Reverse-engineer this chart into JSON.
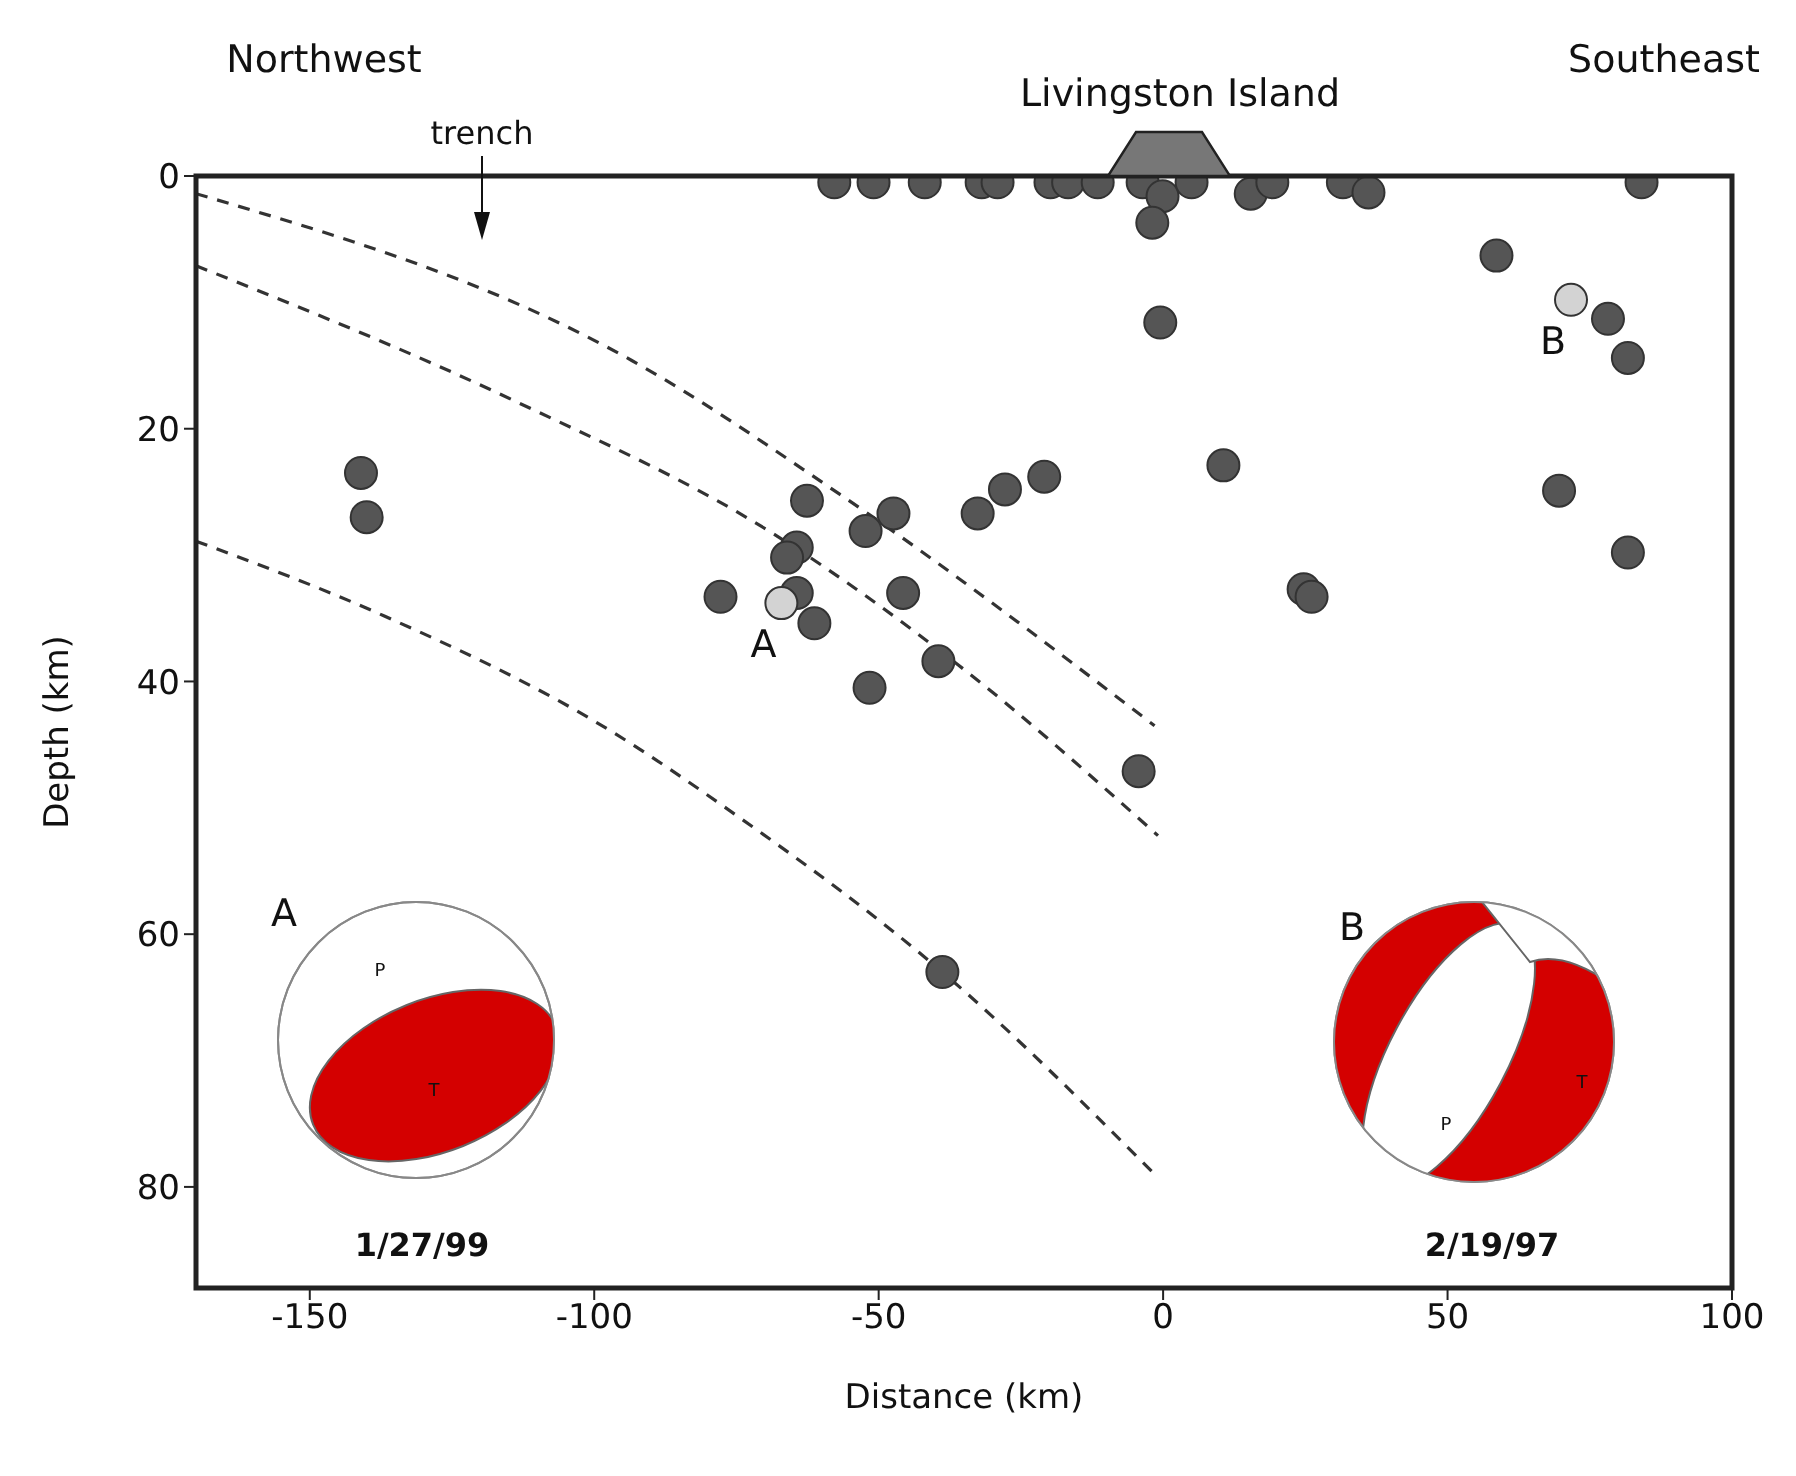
{
  "chart_data": {
    "type": "scatter",
    "xlabel": "Distance (km)",
    "ylabel": "Depth (km)",
    "xlim": [
      -170,
      100
    ],
    "xticks": [
      -150,
      -100,
      -50,
      0,
      50,
      100
    ],
    "ylim": [
      88,
      0
    ],
    "yticks": [
      0,
      20,
      40,
      60,
      80
    ],
    "marker": "circle",
    "series": [
      {
        "color": "#555555",
        "x": [
          -57.8,
          -50.9,
          -41.9,
          -31.9,
          -29.1,
          -19.8,
          -16.7,
          -11.5,
          -3.6,
          -0.1,
          -1.9,
          5.0,
          15.4,
          19.2,
          31.6,
          36.1,
          84.1,
          58.6,
          78.2,
          81.7,
          -0.5,
          10.6,
          69.6,
          81.7,
          24.7,
          26.1,
          -20.9,
          -27.8,
          -32.6,
          -141.0,
          -140.0,
          -62.6,
          -64.4,
          -66.1,
          -64.4,
          -77.8,
          -61.3,
          -52.3,
          -47.4,
          -45.7,
          -39.5,
          -51.6,
          -4.3,
          -38.8
        ],
        "values": [
          0.5,
          0.5,
          0.5,
          0.5,
          0.5,
          0.5,
          0.5,
          0.5,
          0.5,
          1.6,
          3.7,
          0.5,
          1.4,
          0.5,
          0.5,
          1.3,
          0.5,
          6.3,
          11.3,
          14.4,
          11.6,
          22.9,
          24.9,
          29.8,
          32.7,
          33.3,
          23.8,
          24.8,
          26.7,
          23.5,
          27.0,
          25.7,
          29.4,
          30.2,
          33.0,
          33.3,
          35.4,
          28.1,
          26.7,
          33.0,
          38.4,
          40.5,
          47.1,
          63.0
        ]
      },
      {
        "color": "#d3d3d3",
        "x": [
          -67.1,
          71.7
        ],
        "values": [
          33.8,
          9.8
        ]
      },
      {
        "type": "line",
        "color": "#333333",
        "line_style": "dashed",
        "marker": "none",
        "x": [
          -170,
          -93.4,
          -56.8,
          -1.5
        ],
        "values": [
          1.4,
          14.6,
          25.2,
          43.5
        ]
      },
      {
        "type": "line",
        "color": "#333333",
        "line_style": "dashed",
        "marker": "none",
        "x": [
          -170,
          -114,
          -68.2,
          -36,
          -0.9
        ],
        "values": [
          7.1,
          17.8,
          28.4,
          38.7,
          52.2
        ]
      },
      {
        "type": "line",
        "color": "#333333",
        "line_style": "dashed",
        "marker": "none",
        "x": [
          -170,
          -137,
          -96.8,
          -75,
          -38.8,
          -1.5
        ],
        "values": [
          28.9,
          34.8,
          44.0,
          50.6,
          63.0,
          79.0
        ]
      }
    ],
    "annotations": [
      "Northwest",
      "Southeast",
      "trench",
      "Livingston Island",
      {
        "text": "A",
        "x": -67.1,
        "y": 33.8
      },
      {
        "text": "B",
        "x": 71.7,
        "y": 9.8
      },
      "A",
      "P",
      "T",
      "1/27/99",
      "B",
      "P",
      "T",
      "2/19/97"
    ]
  }
}
